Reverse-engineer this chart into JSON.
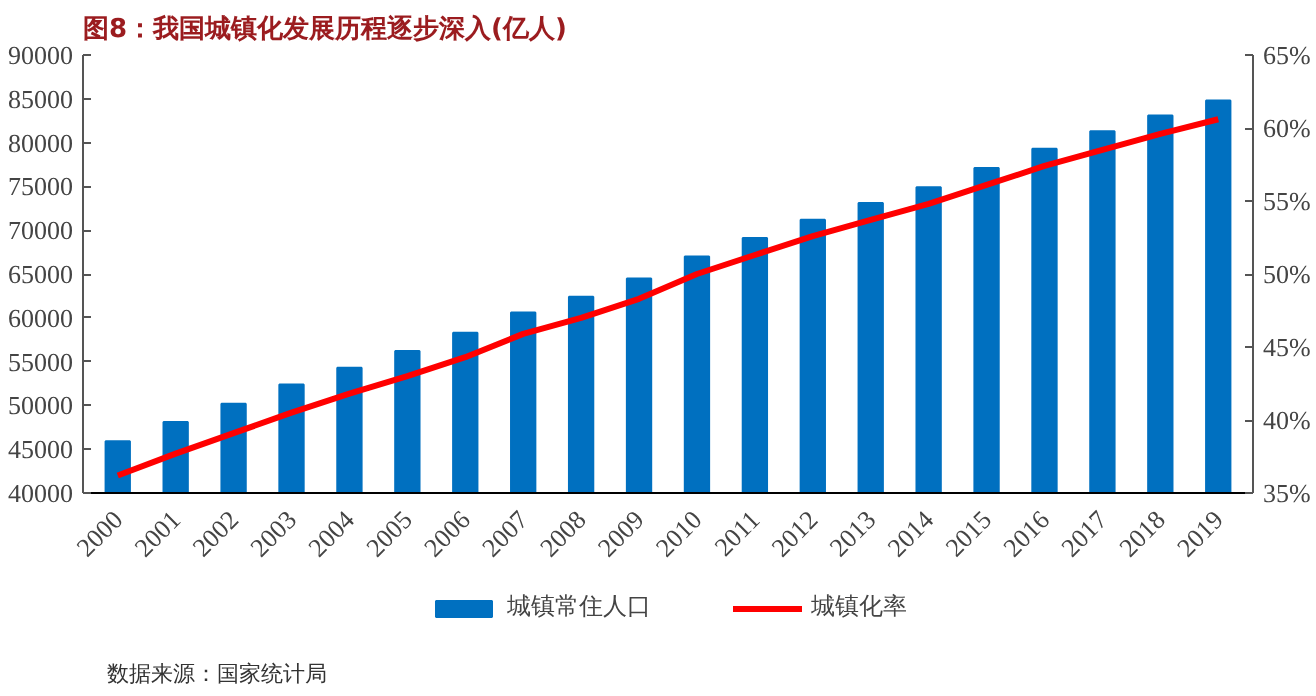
{
  "chart_data": {
    "type": "bar",
    "title": "图8：我国城镇化发展历程逐步深入(亿人)",
    "categories": [
      "2000",
      "2001",
      "2002",
      "2003",
      "2004",
      "2005",
      "2006",
      "2007",
      "2008",
      "2009",
      "2010",
      "2011",
      "2012",
      "2013",
      "2014",
      "2015",
      "2016",
      "2017",
      "2018",
      "2019"
    ],
    "series": [
      {
        "name": "城镇常住人口",
        "color": "#0070c0",
        "values": [
          45900,
          48100,
          50200,
          52400,
          54300,
          56200,
          58300,
          60600,
          62400,
          64500,
          67000,
          69100,
          71200,
          73100,
          74900,
          77100,
          79300,
          81300,
          83100,
          84800
        ]
      },
      {
        "name": "城镇化率",
        "type": "line",
        "axis": "y2",
        "color": "#ff0000",
        "values": [
          36.2,
          37.7,
          39.1,
          40.5,
          41.8,
          43.0,
          44.3,
          45.9,
          47.0,
          48.3,
          50.0,
          51.3,
          52.6,
          53.7,
          54.8,
          56.1,
          57.4,
          58.5,
          59.6,
          60.6
        ]
      }
    ],
    "ylim": [
      40000,
      90000
    ],
    "yticks": [
      40000,
      45000,
      50000,
      55000,
      60000,
      65000,
      70000,
      75000,
      80000,
      85000,
      90000
    ],
    "y2lim": [
      35,
      65
    ],
    "y2ticks": [
      {
        "value": 35,
        "label": "35%"
      },
      {
        "value": 40,
        "label": "40%"
      },
      {
        "value": 45,
        "label": "45%"
      },
      {
        "value": 50,
        "label": "50%"
      },
      {
        "value": 55,
        "label": "55%"
      },
      {
        "value": 60,
        "label": "60%"
      },
      {
        "value": 65,
        "label": "65%"
      }
    ],
    "grid": false,
    "legend": "bottom",
    "annotations": [
      "数据来源：国家统计局"
    ]
  }
}
